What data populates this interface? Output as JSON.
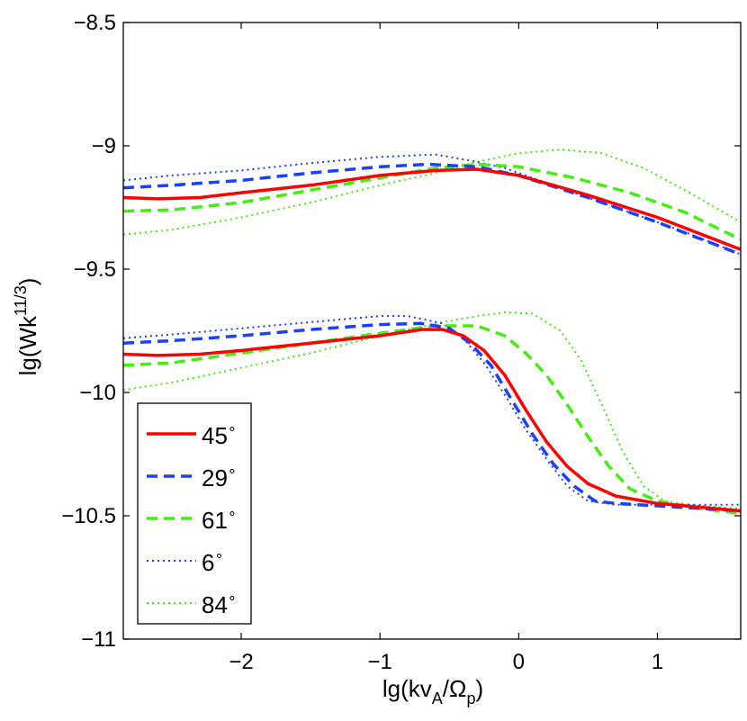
{
  "chart_data": {
    "type": "line",
    "xlabel": {
      "main": "lg(kv",
      "sub1": "A",
      "mid": "/Ω",
      "sub2": "p",
      "close": ")"
    },
    "ylabel": {
      "main": "lg(Wk",
      "sup": "11/3",
      "close": ")"
    },
    "xlim": [
      -2.85,
      1.6
    ],
    "ylim": [
      -11,
      -8.5
    ],
    "xticks": [
      {
        "value": -2,
        "label": "−2"
      },
      {
        "value": -1,
        "label": "−1"
      },
      {
        "value": 0,
        "label": "0"
      },
      {
        "value": 1,
        "label": "1"
      }
    ],
    "yticks": [
      {
        "value": -8.5,
        "label": "−8.5"
      },
      {
        "value": -9,
        "label": "−9"
      },
      {
        "value": -9.5,
        "label": "−9.5"
      },
      {
        "value": -10,
        "label": "−10"
      },
      {
        "value": -10.5,
        "label": "−10.5"
      },
      {
        "value": -11,
        "label": "−11"
      }
    ],
    "legend_position": "bottom-left",
    "degree_symbol": "∘",
    "series": [
      {
        "name": "45",
        "color": "#ff0000",
        "style": "solid",
        "upper": [
          [
            -2.85,
            -9.21
          ],
          [
            -2.6,
            -9.215
          ],
          [
            -2.3,
            -9.21
          ],
          [
            -2.0,
            -9.19
          ],
          [
            -1.5,
            -9.16
          ],
          [
            -1.0,
            -9.12
          ],
          [
            -0.6,
            -9.1
          ],
          [
            -0.3,
            -9.095
          ],
          [
            0.0,
            -9.12
          ],
          [
            0.5,
            -9.2
          ],
          [
            1.0,
            -9.29
          ],
          [
            1.6,
            -9.42
          ]
        ],
        "lower": [
          [
            -2.85,
            -9.845
          ],
          [
            -2.6,
            -9.85
          ],
          [
            -2.3,
            -9.845
          ],
          [
            -2.0,
            -9.83
          ],
          [
            -1.5,
            -9.8
          ],
          [
            -1.0,
            -9.77
          ],
          [
            -0.7,
            -9.745
          ],
          [
            -0.55,
            -9.745
          ],
          [
            -0.4,
            -9.77
          ],
          [
            -0.25,
            -9.83
          ],
          [
            -0.1,
            -9.93
          ],
          [
            0.05,
            -10.07
          ],
          [
            0.2,
            -10.2
          ],
          [
            0.35,
            -10.3
          ],
          [
            0.5,
            -10.37
          ],
          [
            0.7,
            -10.42
          ],
          [
            1.0,
            -10.45
          ],
          [
            1.3,
            -10.465
          ],
          [
            1.6,
            -10.48
          ]
        ]
      },
      {
        "name": "29",
        "color": "#1a3fff",
        "style": "dashed",
        "upper": [
          [
            -2.85,
            -9.17
          ],
          [
            -2.5,
            -9.16
          ],
          [
            -2.0,
            -9.14
          ],
          [
            -1.5,
            -9.11
          ],
          [
            -1.0,
            -9.085
          ],
          [
            -0.65,
            -9.075
          ],
          [
            -0.3,
            -9.085
          ],
          [
            0.0,
            -9.12
          ],
          [
            0.5,
            -9.21
          ],
          [
            1.0,
            -9.31
          ],
          [
            1.6,
            -9.44
          ]
        ],
        "lower": [
          [
            -2.85,
            -9.8
          ],
          [
            -2.5,
            -9.79
          ],
          [
            -2.0,
            -9.77
          ],
          [
            -1.5,
            -9.745
          ],
          [
            -1.0,
            -9.725
          ],
          [
            -0.7,
            -9.72
          ],
          [
            -0.5,
            -9.74
          ],
          [
            -0.35,
            -9.8
          ],
          [
            -0.2,
            -9.89
          ],
          [
            -0.05,
            -10.03
          ],
          [
            0.1,
            -10.17
          ],
          [
            0.25,
            -10.29
          ],
          [
            0.4,
            -10.38
          ],
          [
            0.55,
            -10.44
          ],
          [
            0.7,
            -10.45
          ],
          [
            1.0,
            -10.46
          ],
          [
            1.3,
            -10.47
          ],
          [
            1.6,
            -10.48
          ]
        ]
      },
      {
        "name": "61",
        "color": "#44ee11",
        "style": "dashed",
        "upper": [
          [
            -2.85,
            -9.265
          ],
          [
            -2.5,
            -9.26
          ],
          [
            -2.0,
            -9.23
          ],
          [
            -1.5,
            -9.18
          ],
          [
            -1.0,
            -9.13
          ],
          [
            -0.6,
            -9.09
          ],
          [
            -0.3,
            -9.075
          ],
          [
            0.0,
            -9.085
          ],
          [
            0.4,
            -9.13
          ],
          [
            0.8,
            -9.19
          ],
          [
            1.2,
            -9.27
          ],
          [
            1.6,
            -9.38
          ]
        ],
        "lower": [
          [
            -2.85,
            -9.89
          ],
          [
            -2.5,
            -9.88
          ],
          [
            -2.0,
            -9.84
          ],
          [
            -1.5,
            -9.8
          ],
          [
            -1.0,
            -9.76
          ],
          [
            -0.6,
            -9.73
          ],
          [
            -0.3,
            -9.73
          ],
          [
            -0.1,
            -9.77
          ],
          [
            0.05,
            -9.84
          ],
          [
            0.2,
            -9.93
          ],
          [
            0.35,
            -10.05
          ],
          [
            0.5,
            -10.18
          ],
          [
            0.65,
            -10.3
          ],
          [
            0.8,
            -10.39
          ],
          [
            1.0,
            -10.44
          ],
          [
            1.3,
            -10.47
          ],
          [
            1.6,
            -10.49
          ]
        ]
      },
      {
        "name": "6",
        "color": "#1a3fff",
        "style": "dotted",
        "upper": [
          [
            -2.85,
            -9.14
          ],
          [
            -2.5,
            -9.12
          ],
          [
            -2.0,
            -9.1
          ],
          [
            -1.5,
            -9.07
          ],
          [
            -1.0,
            -9.045
          ],
          [
            -0.6,
            -9.035
          ],
          [
            -0.35,
            -9.06
          ],
          [
            -0.1,
            -9.09
          ],
          [
            0.3,
            -9.17
          ],
          [
            0.8,
            -9.27
          ],
          [
            1.2,
            -9.35
          ],
          [
            1.6,
            -9.44
          ]
        ],
        "lower": [
          [
            -2.85,
            -9.78
          ],
          [
            -2.5,
            -9.765
          ],
          [
            -2.0,
            -9.74
          ],
          [
            -1.5,
            -9.715
          ],
          [
            -1.0,
            -9.69
          ],
          [
            -0.8,
            -9.69
          ],
          [
            -0.55,
            -9.72
          ],
          [
            -0.4,
            -9.78
          ],
          [
            -0.25,
            -9.88
          ],
          [
            -0.1,
            -10.01
          ],
          [
            0.05,
            -10.15
          ],
          [
            0.2,
            -10.27
          ],
          [
            0.35,
            -10.38
          ],
          [
            0.5,
            -10.44
          ],
          [
            0.7,
            -10.455
          ],
          [
            1.0,
            -10.455
          ],
          [
            1.3,
            -10.455
          ],
          [
            1.6,
            -10.455
          ]
        ]
      },
      {
        "name": "84",
        "color": "#44ee11",
        "style": "dotted",
        "upper": [
          [
            -2.85,
            -9.36
          ],
          [
            -2.5,
            -9.34
          ],
          [
            -2.0,
            -9.29
          ],
          [
            -1.5,
            -9.23
          ],
          [
            -1.0,
            -9.16
          ],
          [
            -0.6,
            -9.11
          ],
          [
            -0.3,
            -9.065
          ],
          [
            0.0,
            -9.03
          ],
          [
            0.3,
            -9.015
          ],
          [
            0.6,
            -9.03
          ],
          [
            0.9,
            -9.09
          ],
          [
            1.2,
            -9.18
          ],
          [
            1.6,
            -9.31
          ]
        ],
        "lower": [
          [
            -2.85,
            -9.99
          ],
          [
            -2.5,
            -9.96
          ],
          [
            -2.0,
            -9.9
          ],
          [
            -1.5,
            -9.84
          ],
          [
            -1.0,
            -9.77
          ],
          [
            -0.6,
            -9.72
          ],
          [
            -0.3,
            -9.69
          ],
          [
            -0.1,
            -9.675
          ],
          [
            0.1,
            -9.68
          ],
          [
            0.3,
            -9.75
          ],
          [
            0.45,
            -9.87
          ],
          [
            0.6,
            -10.05
          ],
          [
            0.75,
            -10.24
          ],
          [
            0.9,
            -10.38
          ],
          [
            1.05,
            -10.44
          ],
          [
            1.3,
            -10.46
          ],
          [
            1.6,
            -10.47
          ]
        ]
      }
    ]
  }
}
